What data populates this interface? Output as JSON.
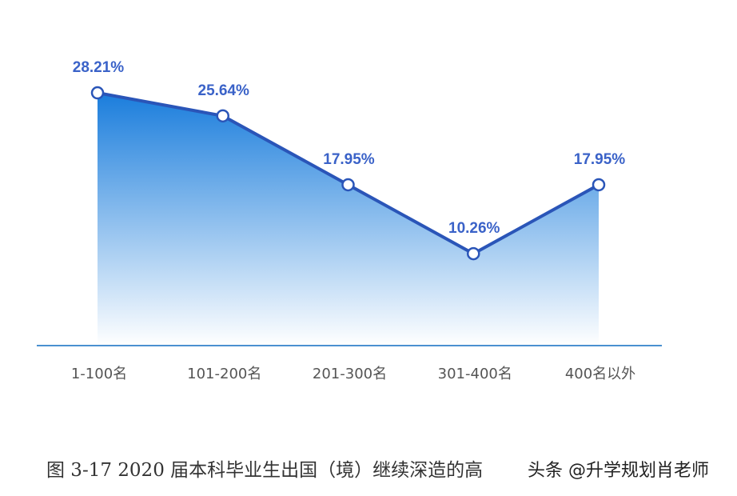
{
  "chart_data": {
    "type": "area",
    "categories": [
      "1-100名",
      "101-200名",
      "201-300名",
      "301-400名",
      "400名以外"
    ],
    "values": [
      28.21,
      25.64,
      17.95,
      10.26,
      17.95
    ],
    "value_labels": [
      "28.21%",
      "25.64%",
      "17.95%",
      "10.26%",
      "17.95%"
    ],
    "ylim": [
      0,
      30
    ],
    "grid": false,
    "colors": {
      "line": "#2a55b8",
      "fill_top": "#1a7ddc",
      "fill_bottom": "#ffffff",
      "label": "#3a62c8",
      "axis": "#4a90d0"
    }
  },
  "caption": "图 3-17 2020 届本科毕业生出国（境）继续深造的高",
  "watermark": "头条 @升学规划肖老师"
}
